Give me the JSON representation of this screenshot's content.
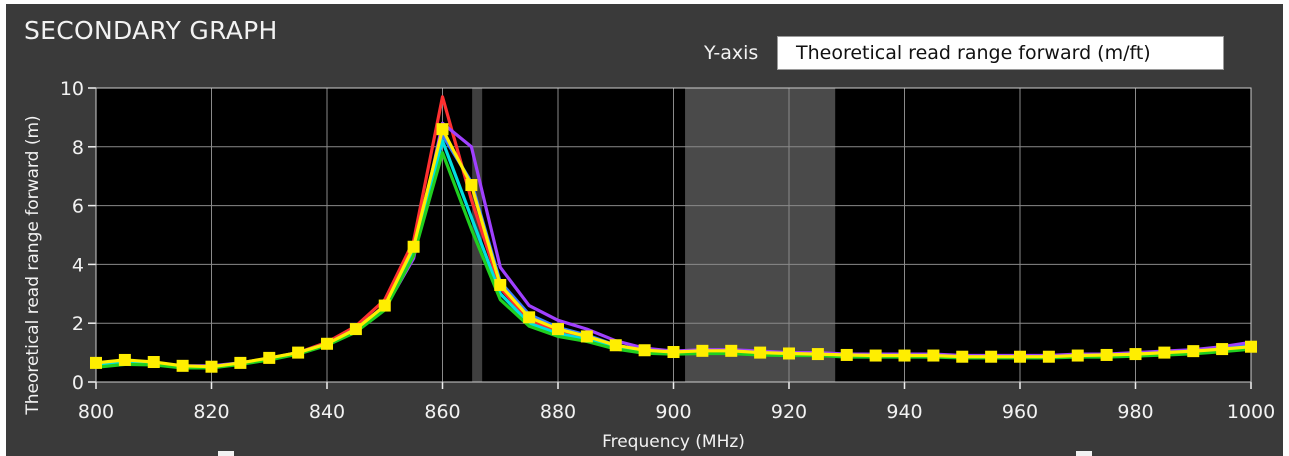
{
  "panel": {
    "title": "SECONDARY GRAPH",
    "yaxis_control_label": "Y-axis",
    "yaxis_selected": "Theoretical read range forward (m/ft)"
  },
  "colors": {
    "panel_bg": "#3a3a3a",
    "plot_bg": "#000000",
    "grid": "#8a8a8a",
    "band": "#4a4a4a",
    "marker": "#3f3f3f"
  },
  "chart_data": {
    "type": "line",
    "xlabel": "Frequency (MHz)",
    "ylabel": "Theoretical read range forward (m)",
    "xlim": [
      800,
      1000
    ],
    "ylim": [
      0,
      10
    ],
    "x_ticks": [
      800,
      820,
      840,
      860,
      880,
      900,
      920,
      940,
      960,
      980,
      1000
    ],
    "y_ticks": [
      0,
      2,
      4,
      6,
      8,
      10
    ],
    "grid": true,
    "legend": "none",
    "highlight_band": [
      902,
      928
    ],
    "vertical_marker": 866,
    "x": [
      800,
      805,
      810,
      815,
      820,
      825,
      830,
      835,
      840,
      845,
      850,
      855,
      860,
      865,
      870,
      875,
      880,
      885,
      890,
      895,
      900,
      905,
      910,
      915,
      920,
      925,
      930,
      935,
      940,
      945,
      950,
      955,
      960,
      965,
      970,
      975,
      980,
      985,
      990,
      995,
      1000
    ],
    "series": [
      {
        "color": "#ff3030",
        "values": [
          0.55,
          0.65,
          0.62,
          0.52,
          0.52,
          0.65,
          0.8,
          1.0,
          1.35,
          1.9,
          2.8,
          4.8,
          9.7,
          6.2,
          3.2,
          2.1,
          1.7,
          1.5,
          1.2,
          1.05,
          1.0,
          1.05,
          1.05,
          1.0,
          0.95,
          0.95,
          0.9,
          0.9,
          0.9,
          0.9,
          0.85,
          0.85,
          0.85,
          0.85,
          0.9,
          0.9,
          0.95,
          1.0,
          1.05,
          1.15,
          1.3
        ]
      },
      {
        "color": "#a040ff",
        "values": [
          0.6,
          0.7,
          0.65,
          0.55,
          0.55,
          0.65,
          0.8,
          1.0,
          1.3,
          1.8,
          2.5,
          4.2,
          8.8,
          8.0,
          3.9,
          2.6,
          2.1,
          1.8,
          1.4,
          1.15,
          1.05,
          1.1,
          1.1,
          1.05,
          1.0,
          1.0,
          0.95,
          0.95,
          0.95,
          0.95,
          0.9,
          0.9,
          0.9,
          0.9,
          0.95,
          0.95,
          1.0,
          1.05,
          1.1,
          1.2,
          1.35
        ]
      },
      {
        "color": "#3a7dff",
        "values": [
          0.6,
          0.7,
          0.62,
          0.52,
          0.52,
          0.65,
          0.8,
          1.0,
          1.3,
          1.8,
          2.6,
          4.5,
          8.4,
          6.8,
          3.4,
          2.3,
          1.85,
          1.6,
          1.25,
          1.08,
          1.0,
          1.05,
          1.05,
          1.0,
          0.95,
          0.95,
          0.9,
          0.9,
          0.9,
          0.9,
          0.85,
          0.85,
          0.85,
          0.85,
          0.9,
          0.9,
          0.95,
          1.0,
          1.05,
          1.12,
          1.25
        ]
      },
      {
        "color": "#00e0e0",
        "values": [
          0.55,
          0.65,
          0.6,
          0.5,
          0.5,
          0.62,
          0.78,
          0.98,
          1.28,
          1.75,
          2.5,
          4.4,
          8.2,
          5.6,
          3.0,
          2.0,
          1.65,
          1.45,
          1.18,
          1.02,
          0.98,
          1.0,
          1.0,
          0.95,
          0.92,
          0.92,
          0.88,
          0.88,
          0.88,
          0.88,
          0.84,
          0.84,
          0.84,
          0.84,
          0.88,
          0.88,
          0.92,
          0.96,
          1.0,
          1.08,
          1.2
        ]
      },
      {
        "color": "#20d020",
        "values": [
          0.5,
          0.6,
          0.58,
          0.48,
          0.48,
          0.6,
          0.75,
          0.95,
          1.25,
          1.7,
          2.45,
          4.3,
          7.8,
          5.2,
          2.8,
          1.9,
          1.55,
          1.38,
          1.12,
          0.98,
          0.95,
          0.97,
          0.97,
          0.92,
          0.9,
          0.9,
          0.85,
          0.85,
          0.85,
          0.85,
          0.82,
          0.82,
          0.82,
          0.82,
          0.85,
          0.85,
          0.88,
          0.92,
          0.96,
          1.03,
          1.12
        ]
      },
      {
        "color": "#ffee00",
        "markers": true,
        "values": [
          0.65,
          0.75,
          0.68,
          0.55,
          0.52,
          0.65,
          0.82,
          1.0,
          1.3,
          1.8,
          2.6,
          4.6,
          8.6,
          6.7,
          3.3,
          2.2,
          1.8,
          1.55,
          1.25,
          1.08,
          1.02,
          1.06,
          1.06,
          1.0,
          0.97,
          0.95,
          0.92,
          0.9,
          0.9,
          0.9,
          0.86,
          0.86,
          0.86,
          0.86,
          0.9,
          0.92,
          0.95,
          1.0,
          1.05,
          1.12,
          1.2
        ]
      }
    ]
  }
}
